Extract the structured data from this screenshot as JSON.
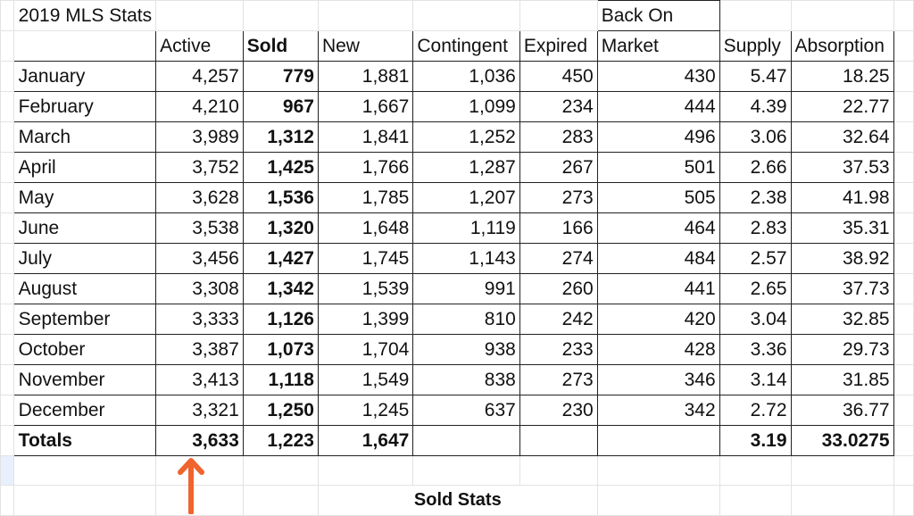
{
  "sheet": {
    "title": "2019 MLS Stats",
    "top_header": "Back On",
    "headers": [
      "Active",
      "Sold",
      "New",
      "Contingent",
      "Expired",
      "Market",
      "Supply",
      "Absorption"
    ],
    "rows": [
      {
        "month": "January",
        "cells": [
          "4,257",
          "779",
          "1,881",
          "1,036",
          "450",
          "430",
          "5.47",
          "18.25"
        ]
      },
      {
        "month": "February",
        "cells": [
          "4,210",
          "967",
          "1,667",
          "1,099",
          "234",
          "444",
          "4.39",
          "22.77"
        ]
      },
      {
        "month": "March",
        "cells": [
          "3,989",
          "1,312",
          "1,841",
          "1,252",
          "283",
          "496",
          "3.06",
          "32.64"
        ]
      },
      {
        "month": "April",
        "cells": [
          "3,752",
          "1,425",
          "1,766",
          "1,287",
          "267",
          "501",
          "2.66",
          "37.53"
        ]
      },
      {
        "month": "May",
        "cells": [
          "3,628",
          "1,536",
          "1,785",
          "1,207",
          "273",
          "505",
          "2.38",
          "41.98"
        ]
      },
      {
        "month": "June",
        "cells": [
          "3,538",
          "1,320",
          "1,648",
          "1,119",
          "166",
          "464",
          "2.83",
          "35.31"
        ]
      },
      {
        "month": "July",
        "cells": [
          "3,456",
          "1,427",
          "1,745",
          "1,143",
          "274",
          "484",
          "2.57",
          "38.92"
        ]
      },
      {
        "month": "August",
        "cells": [
          "3,308",
          "1,342",
          "1,539",
          "991",
          "260",
          "441",
          "2.65",
          "37.73"
        ]
      },
      {
        "month": "September",
        "cells": [
          "3,333",
          "1,126",
          "1,399",
          "810",
          "242",
          "420",
          "3.04",
          "32.85"
        ]
      },
      {
        "month": "October",
        "cells": [
          "3,387",
          "1,073",
          "1,704",
          "938",
          "233",
          "428",
          "3.36",
          "29.73"
        ]
      },
      {
        "month": "November",
        "cells": [
          "3,413",
          "1,118",
          "1,549",
          "838",
          "273",
          "346",
          "3.14",
          "31.85"
        ]
      },
      {
        "month": "December",
        "cells": [
          "3,321",
          "1,250",
          "1,245",
          "637",
          "230",
          "342",
          "2.72",
          "36.77"
        ]
      }
    ],
    "totals": {
      "label": "Totals",
      "cells": [
        "3,633",
        "1,223",
        "1,647",
        "",
        "",
        "",
        "3.19",
        "33.0275"
      ]
    },
    "footer": "Sold Stats"
  },
  "arrow": {
    "icon": "up-arrow-icon",
    "color": "#f0642d"
  }
}
